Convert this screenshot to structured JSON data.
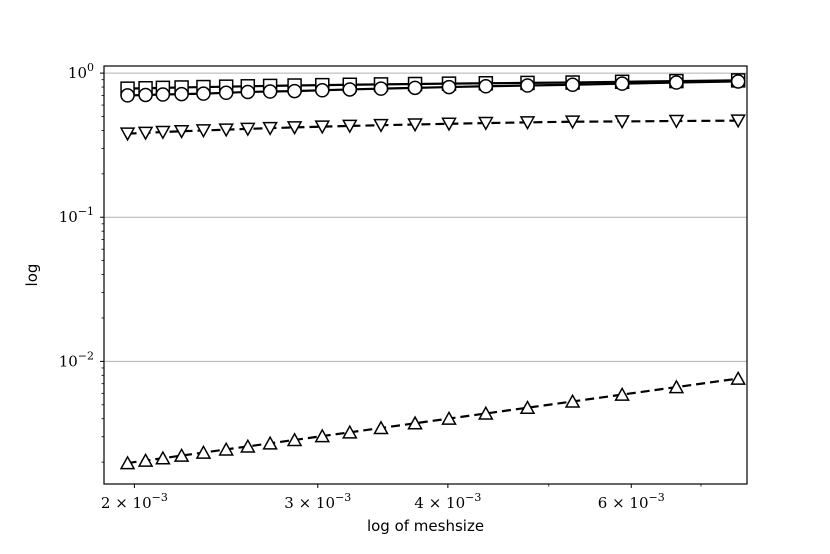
{
  "chart_data": {
    "type": "line",
    "xlabel": "log of meshsize",
    "ylabel": "log",
    "xscale": "log",
    "yscale": "log",
    "xlim": [
      0.00187,
      0.00775
    ],
    "ylim": [
      0.00141,
      1.12
    ],
    "grid": "y-major",
    "xticks": [
      {
        "value": 0.002,
        "mant": "2",
        "exp": "−3"
      },
      {
        "value": 0.003,
        "mant": "3",
        "exp": "−3"
      },
      {
        "value": 0.004,
        "mant": "4",
        "exp": "−3"
      },
      {
        "value": 0.006,
        "mant": "6",
        "exp": "−3"
      }
    ],
    "yticks": [
      {
        "value": 1,
        "exp": "0"
      },
      {
        "value": 0.1,
        "exp": "−1"
      },
      {
        "value": 0.01,
        "exp": "−2"
      }
    ],
    "series": [
      {
        "marker": "square",
        "linestyle": "solid",
        "x": [
          0.00197,
          0.00205,
          0.00213,
          0.00222,
          0.00233,
          0.00245,
          0.00257,
          0.0027,
          0.00285,
          0.00303,
          0.00322,
          0.00345,
          0.00372,
          0.00401,
          0.00435,
          0.00477,
          0.00527,
          0.00588,
          0.00663,
          0.0076
        ],
        "y": [
          0.78,
          0.785,
          0.79,
          0.795,
          0.8,
          0.805,
          0.81,
          0.815,
          0.82,
          0.825,
          0.83,
          0.835,
          0.84,
          0.845,
          0.85,
          0.855,
          0.86,
          0.87,
          0.88,
          0.89
        ]
      },
      {
        "marker": "circle",
        "linestyle": "solid",
        "x": [
          0.00197,
          0.00205,
          0.00213,
          0.00222,
          0.00233,
          0.00245,
          0.00257,
          0.0027,
          0.00285,
          0.00303,
          0.00322,
          0.00345,
          0.00372,
          0.00401,
          0.00435,
          0.00477,
          0.00527,
          0.00588,
          0.00663,
          0.0076
        ],
        "y": [
          0.7,
          0.705,
          0.71,
          0.715,
          0.72,
          0.73,
          0.74,
          0.745,
          0.75,
          0.76,
          0.77,
          0.78,
          0.79,
          0.8,
          0.81,
          0.82,
          0.83,
          0.845,
          0.86,
          0.875
        ]
      },
      {
        "marker": "triangle-down",
        "linestyle": "dashed",
        "x": [
          0.00197,
          0.00205,
          0.00213,
          0.00222,
          0.00233,
          0.00245,
          0.00257,
          0.0027,
          0.00285,
          0.00303,
          0.00322,
          0.00345,
          0.00372,
          0.00401,
          0.00435,
          0.00477,
          0.00527,
          0.00588,
          0.00663,
          0.0076
        ],
        "y": [
          0.38,
          0.385,
          0.39,
          0.395,
          0.4,
          0.405,
          0.41,
          0.415,
          0.42,
          0.425,
          0.43,
          0.435,
          0.44,
          0.445,
          0.45,
          0.455,
          0.46,
          0.462,
          0.465,
          0.468
        ]
      },
      {
        "marker": "triangle-up",
        "linestyle": "dashed",
        "x": [
          0.00197,
          0.00205,
          0.00213,
          0.00222,
          0.00233,
          0.00245,
          0.00257,
          0.0027,
          0.00285,
          0.00303,
          0.00322,
          0.00345,
          0.00372,
          0.00401,
          0.00435,
          0.00477,
          0.00527,
          0.00588,
          0.00663,
          0.0076
        ],
        "y": [
          0.00197,
          0.00205,
          0.00213,
          0.00222,
          0.00233,
          0.00245,
          0.00257,
          0.0027,
          0.00285,
          0.00303,
          0.00322,
          0.00345,
          0.00372,
          0.00401,
          0.00435,
          0.00477,
          0.00527,
          0.00588,
          0.00663,
          0.0076
        ]
      }
    ]
  }
}
